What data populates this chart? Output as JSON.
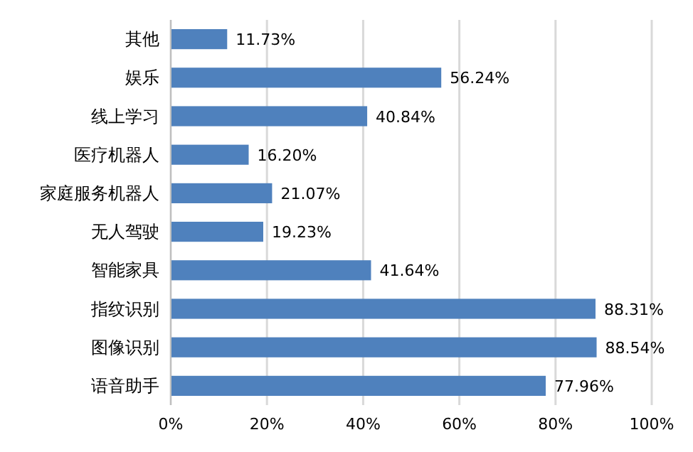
{
  "chart_data": {
    "type": "bar",
    "orientation": "horizontal",
    "categories": [
      "其他",
      "娱乐",
      "线上学习",
      "医疗机器人",
      "家庭服务机器人",
      "无人驾驶",
      "智能家具",
      "指纹识别",
      "图像识别",
      "语音助手"
    ],
    "values": [
      11.73,
      56.24,
      40.84,
      16.2,
      21.07,
      19.23,
      41.64,
      88.31,
      88.54,
      77.96
    ],
    "value_labels": [
      "11.73%",
      "56.24%",
      "40.84%",
      "16.20%",
      "21.07%",
      "19.23%",
      "41.64%",
      "88.31%",
      "88.54%",
      "77.96%"
    ],
    "color": "#4f81bd",
    "xlim": [
      0,
      100
    ],
    "xticks": [
      {
        "value": 0,
        "label": "0%"
      },
      {
        "value": 20,
        "label": "20%"
      },
      {
        "value": 40,
        "label": "40%"
      },
      {
        "value": 60,
        "label": "60%"
      },
      {
        "value": 80,
        "label": "80%"
      },
      {
        "value": 100,
        "label": "100%"
      }
    ],
    "grid": "x"
  }
}
